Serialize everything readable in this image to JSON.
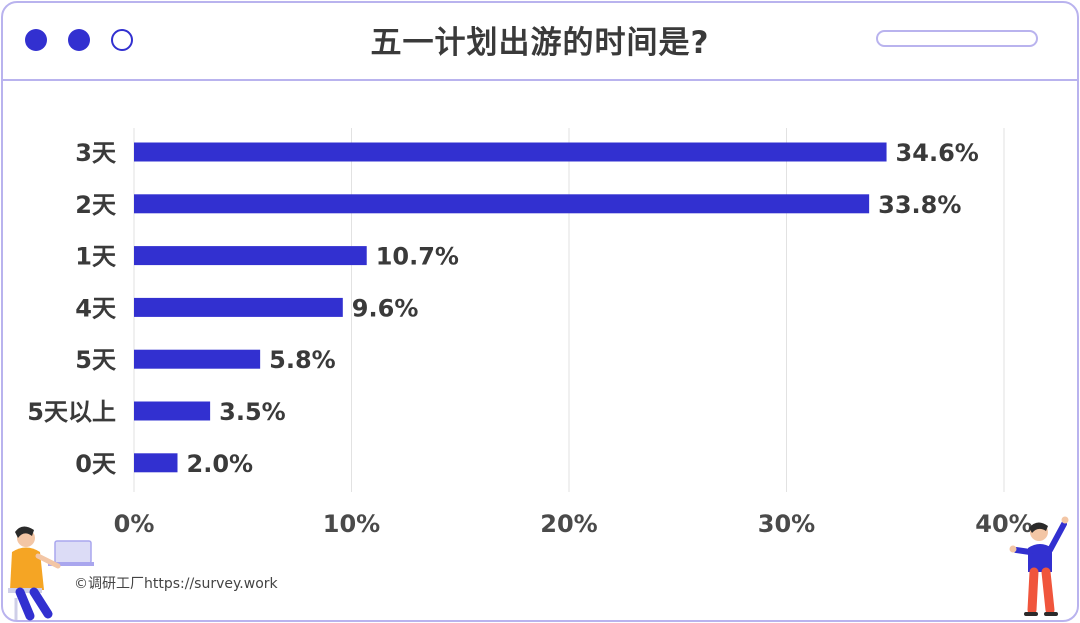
{
  "window": {
    "title": "五一计划出游的时间是?",
    "dots": [
      "filled",
      "filled",
      "hollow"
    ]
  },
  "colors": {
    "bar": "#3230d0",
    "frame": "#b9b3ee",
    "grid": "#e2e2e2"
  },
  "chart_data": {
    "type": "bar",
    "orientation": "horizontal",
    "title": "五一计划出游的时间是?",
    "categories": [
      "3天",
      "2天",
      "1天",
      "4天",
      "5天",
      "5天以上",
      "0天"
    ],
    "values": [
      34.6,
      33.8,
      10.7,
      9.6,
      5.8,
      3.5,
      2.0
    ],
    "value_labels": [
      "34.6%",
      "33.8%",
      "10.7%",
      "9.6%",
      "5.8%",
      "3.5%",
      "2.0%"
    ],
    "xlim": [
      0,
      40
    ],
    "xticks": [
      0,
      10,
      20,
      30,
      40
    ],
    "xtick_labels": [
      "0%",
      "10%",
      "20%",
      "30%",
      "40%"
    ],
    "grid": "vertical",
    "legend": "none"
  },
  "footer": {
    "credit": "©调研工厂https://survey.work"
  },
  "illustrations": [
    "person-at-laptop-illustration",
    "person-pointing-illustration"
  ]
}
